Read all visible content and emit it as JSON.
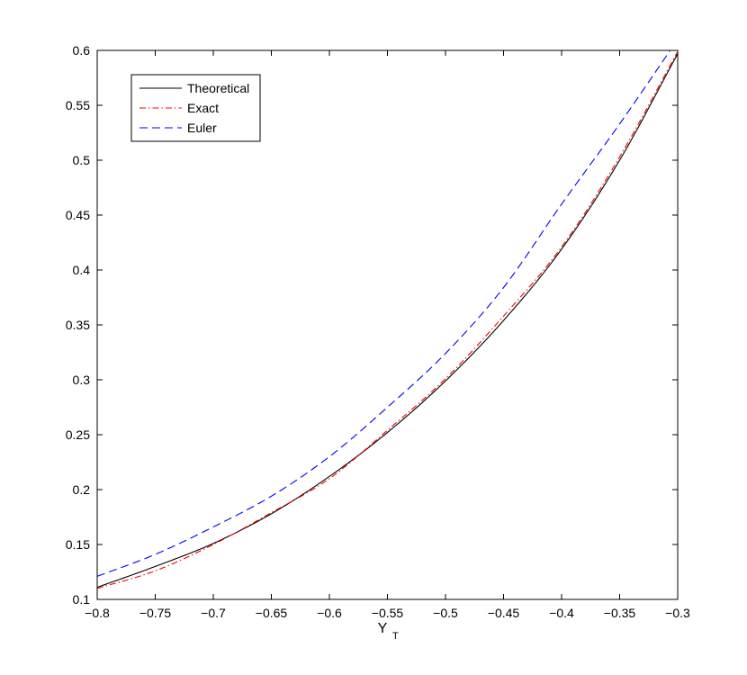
{
  "chart_data": {
    "type": "line",
    "title": "",
    "xlabel": "Y",
    "xlabel_subscript": "T",
    "ylabel": "",
    "xlim": [
      -0.8,
      -0.3
    ],
    "ylim": [
      0.1,
      0.6
    ],
    "xticks": [
      -0.8,
      -0.75,
      -0.7,
      -0.65,
      -0.6,
      -0.55,
      -0.5,
      -0.45,
      -0.4,
      -0.35,
      -0.3
    ],
    "xtick_labels": [
      "−0.8",
      "−0.75",
      "−0.7",
      "−0.65",
      "−0.6",
      "−0.55",
      "−0.5",
      "−0.45",
      "−0.4",
      "−0.35",
      "−0.3"
    ],
    "yticks": [
      0.1,
      0.15,
      0.2,
      0.25,
      0.3,
      0.35,
      0.4,
      0.45,
      0.5,
      0.55,
      0.6
    ],
    "ytick_labels": [
      "0.1",
      "0.15",
      "0.2",
      "0.25",
      "0.3",
      "0.35",
      "0.4",
      "0.45",
      "0.5",
      "0.55",
      "0.6"
    ],
    "grid": false,
    "legend_position": "top-left",
    "x": [
      -0.8,
      -0.75,
      -0.7,
      -0.65,
      -0.6,
      -0.55,
      -0.5,
      -0.45,
      -0.4,
      -0.35,
      -0.3
    ],
    "series": [
      {
        "name": "Theoretical",
        "color": "#000000",
        "dash": "solid",
        "values": [
          0.111,
          0.13,
          0.151,
          0.178,
          0.212,
          0.252,
          0.299,
          0.354,
          0.419,
          0.5,
          0.597
        ]
      },
      {
        "name": "Exact",
        "color": "#ff0000",
        "dash": "dashdot",
        "values": [
          0.11,
          0.126,
          0.15,
          0.179,
          0.21,
          0.254,
          0.301,
          0.358,
          0.421,
          0.503,
          0.599
        ]
      },
      {
        "name": "Euler",
        "color": "#0000ff",
        "dash": "dashed",
        "values": [
          0.121,
          0.141,
          0.166,
          0.194,
          0.23,
          0.275,
          0.324,
          0.384,
          0.46,
          0.533,
          0.61
        ]
      }
    ]
  }
}
